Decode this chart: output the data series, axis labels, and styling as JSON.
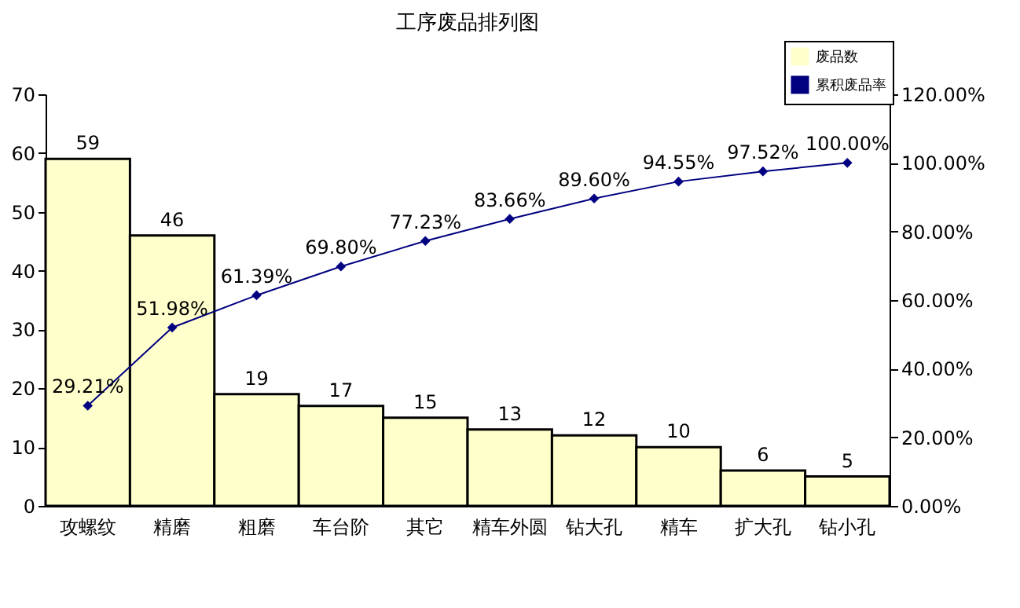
{
  "chart_data": {
    "type": "bar",
    "title": "工序废品排列图",
    "categories": [
      "攻螺纹",
      "精磨",
      "粗磨",
      "车台阶",
      "其它",
      "精车外圆",
      "钻大孔",
      "精车",
      "扩大孔",
      "钻小孔"
    ],
    "series": [
      {
        "name": "废品数",
        "color": "#ffffcc",
        "values": [
          59,
          46,
          19,
          17,
          15,
          13,
          12,
          10,
          6,
          5
        ]
      },
      {
        "name": "累积废品率",
        "type": "line",
        "axis": "y2",
        "color": "#000080",
        "values": [
          29.21,
          51.98,
          61.39,
          69.8,
          77.23,
          83.66,
          89.6,
          94.55,
          97.52,
          100
        ],
        "value_labels": [
          "29.21%",
          "51.98%",
          "61.39%",
          "69.80%",
          "77.23%",
          "83.66%",
          "89.60%",
          "94.55%",
          "97.52%",
          "100.00%"
        ]
      }
    ],
    "data_labels": true,
    "marker": "diamond",
    "legend": "top right",
    "ylim": [
      0,
      70
    ],
    "yticks": [
      0,
      10,
      20,
      30,
      40,
      50,
      60,
      70
    ],
    "y2lim": [
      0,
      120
    ],
    "y2ticks": [
      {
        "value": 0,
        "label": "0.00%"
      },
      {
        "value": 20,
        "label": "20.00%"
      },
      {
        "value": 40,
        "label": "40.00%"
      },
      {
        "value": 60,
        "label": "60.00%"
      },
      {
        "value": 80,
        "label": "80.00%"
      },
      {
        "value": 100,
        "label": "100.00%"
      },
      {
        "value": 120,
        "label": "120.00%"
      }
    ]
  }
}
